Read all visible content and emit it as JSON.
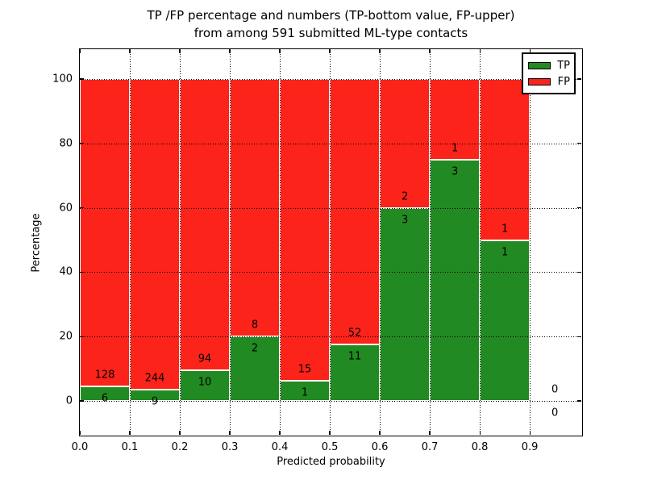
{
  "chart_data": {
    "type": "bar",
    "stacked": true,
    "normalized": "percentage",
    "title_lines": [
      "TP /FP percentage and numbers (TP-bottom value, FP-upper)",
      "from among 591 submitted ML-type contacts"
    ],
    "xlabel": "Predicted probability",
    "ylabel": "Percentage",
    "total_contacts": 591,
    "note": "Each bar: green TP share at bottom, red FP share on top; labels show raw counts (TP below boundary, FP above)",
    "bins": [
      {
        "x_start": 0.0,
        "x_end": 0.1,
        "tp": 6,
        "fp": 128
      },
      {
        "x_start": 0.1,
        "x_end": 0.2,
        "tp": 9,
        "fp": 244
      },
      {
        "x_start": 0.2,
        "x_end": 0.3,
        "tp": 10,
        "fp": 94
      },
      {
        "x_start": 0.3,
        "x_end": 0.4,
        "tp": 2,
        "fp": 8
      },
      {
        "x_start": 0.4,
        "x_end": 0.5,
        "tp": 1,
        "fp": 15
      },
      {
        "x_start": 0.5,
        "x_end": 0.6,
        "tp": 11,
        "fp": 52
      },
      {
        "x_start": 0.6,
        "x_end": 0.7,
        "tp": 3,
        "fp": 2
      },
      {
        "x_start": 0.7,
        "x_end": 0.8,
        "tp": 3,
        "fp": 1
      },
      {
        "x_start": 0.8,
        "x_end": 0.9,
        "tp": 1,
        "fp": 1
      },
      {
        "x_start": 0.9,
        "x_end": 1.0,
        "tp": 0,
        "fp": 0
      }
    ],
    "x_ticks": [
      {
        "label": "0.0",
        "value": 0.0
      },
      {
        "label": "0.1",
        "value": 0.1
      },
      {
        "label": "0.2",
        "value": 0.2
      },
      {
        "label": "0.3",
        "value": 0.3
      },
      {
        "label": "0.4",
        "value": 0.4
      },
      {
        "label": "0.5",
        "value": 0.5
      },
      {
        "label": "0.6",
        "value": 0.6
      },
      {
        "label": "0.7",
        "value": 0.7
      },
      {
        "label": "0.8",
        "value": 0.8
      },
      {
        "label": "0.9",
        "value": 0.9
      }
    ],
    "y_ticks": [
      {
        "label": "0",
        "value": 0
      },
      {
        "label": "20",
        "value": 20
      },
      {
        "label": "40",
        "value": 40
      },
      {
        "label": "60",
        "value": 60
      },
      {
        "label": "80",
        "value": 80
      },
      {
        "label": "100",
        "value": 100
      }
    ],
    "xlim": [
      0.0,
      1.003
    ],
    "ylim": [
      -10.5,
      109.25
    ],
    "grid": true,
    "legend_position": "upper right",
    "legend": [
      {
        "label": "TP",
        "color": "#228A22"
      },
      {
        "label": "FP",
        "color": "#FB231A"
      }
    ]
  }
}
